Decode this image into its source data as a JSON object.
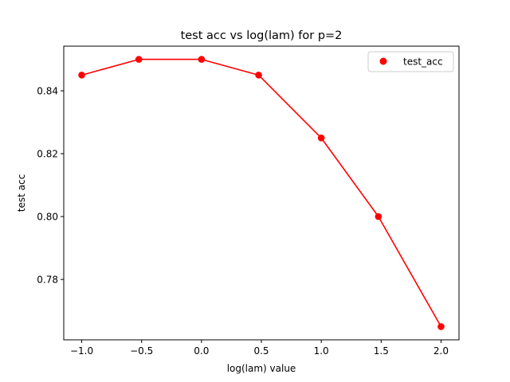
{
  "chart_data": {
    "type": "line",
    "title": "test acc vs log(lam) for p=2",
    "xlabel": "log(lam) value",
    "ylabel": "test acc",
    "xlim": [
      -1.15,
      2.15
    ],
    "ylim": [
      0.7608,
      0.8542
    ],
    "x_ticks": [
      -1.0,
      -0.5,
      0.0,
      0.5,
      1.0,
      1.5,
      2.0
    ],
    "x_tick_labels": [
      "−1.0",
      "−0.5",
      "0.0",
      "0.5",
      "1.0",
      "1.5",
      "2.0"
    ],
    "y_ticks": [
      0.78,
      0.8,
      0.82,
      0.84
    ],
    "y_tick_labels": [
      "0.78",
      "0.80",
      "0.82",
      "0.84"
    ],
    "grid": false,
    "legend_position": "upper-right",
    "series": [
      {
        "name": "test_acc",
        "color": "#ff0000",
        "marker": "circle",
        "x": [
          -1.0,
          -0.523,
          0.0,
          0.477,
          1.0,
          1.477,
          2.0
        ],
        "y": [
          0.845,
          0.85,
          0.85,
          0.845,
          0.825,
          0.8,
          0.765
        ]
      }
    ]
  }
}
